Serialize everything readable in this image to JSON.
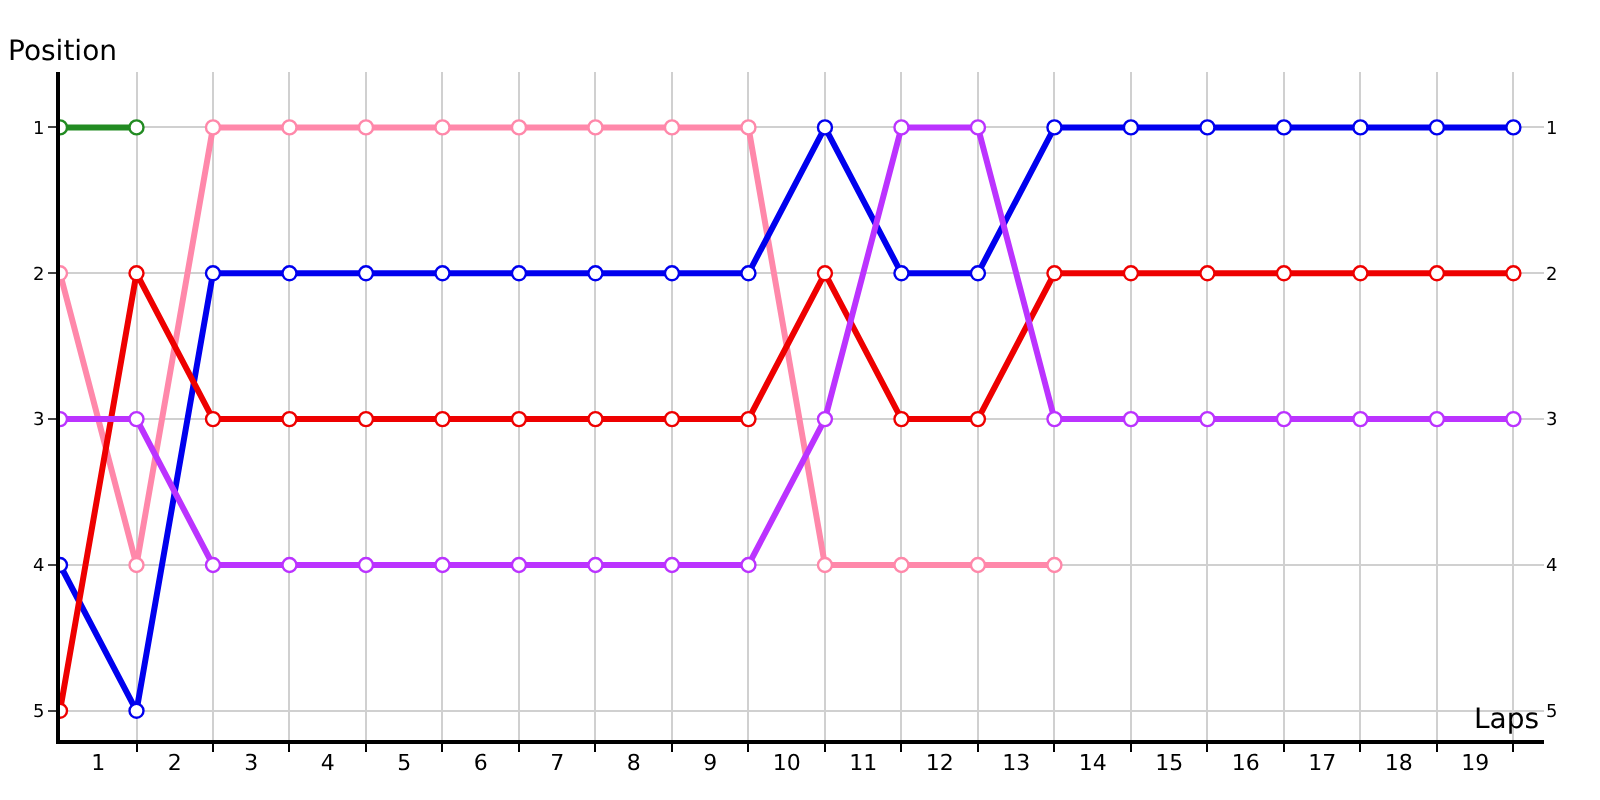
{
  "chart_data": {
    "type": "line",
    "xlabel": "Laps",
    "ylabel": "Position",
    "x": [
      0,
      1,
      2,
      3,
      4,
      5,
      6,
      7,
      8,
      9,
      10,
      11,
      12,
      13,
      14,
      15,
      16,
      17,
      18,
      19
    ],
    "series": [
      {
        "color": "#228b22",
        "values": [
          1,
          1,
          null,
          null,
          null,
          null,
          null,
          null,
          null,
          null,
          null,
          null,
          null,
          null,
          null,
          null,
          null,
          null,
          null,
          null
        ]
      },
      {
        "color": "#ff88aa",
        "values": [
          2,
          4,
          1,
          1,
          1,
          1,
          1,
          1,
          1,
          1,
          4,
          4,
          4,
          4,
          null,
          null,
          null,
          null,
          null,
          null
        ]
      },
      {
        "color": "#0000ee",
        "values": [
          4,
          5,
          2,
          2,
          2,
          2,
          2,
          2,
          2,
          2,
          1,
          2,
          2,
          1,
          1,
          1,
          1,
          1,
          1,
          1
        ]
      },
      {
        "color": "#ee0000",
        "values": [
          5,
          2,
          3,
          3,
          3,
          3,
          3,
          3,
          3,
          3,
          2,
          3,
          3,
          2,
          2,
          2,
          2,
          2,
          2,
          2
        ]
      },
      {
        "color": "#bb33ff",
        "values": [
          3,
          3,
          4,
          4,
          4,
          4,
          4,
          4,
          4,
          4,
          3,
          1,
          1,
          3,
          3,
          3,
          3,
          3,
          3,
          3
        ]
      }
    ],
    "xlim": [
      0,
      19.4
    ],
    "xticks": [
      {
        "value": 0.5,
        "label": "1"
      },
      {
        "value": 1.5,
        "label": "2"
      },
      {
        "value": 2.5,
        "label": "3"
      },
      {
        "value": 3.5,
        "label": "4"
      },
      {
        "value": 4.5,
        "label": "5"
      },
      {
        "value": 5.5,
        "label": "6"
      },
      {
        "value": 6.5,
        "label": "7"
      },
      {
        "value": 7.5,
        "label": "8"
      },
      {
        "value": 8.5,
        "label": "9"
      },
      {
        "value": 9.5,
        "label": "10"
      },
      {
        "value": 10.5,
        "label": "11"
      },
      {
        "value": 11.5,
        "label": "12"
      },
      {
        "value": 12.5,
        "label": "13"
      },
      {
        "value": 13.5,
        "label": "14"
      },
      {
        "value": 14.5,
        "label": "15"
      },
      {
        "value": 15.5,
        "label": "16"
      },
      {
        "value": 16.5,
        "label": "17"
      },
      {
        "value": 17.5,
        "label": "18"
      },
      {
        "value": 18.5,
        "label": "19"
      },
      {
        "value": 1,
        "label": null
      },
      {
        "value": 2,
        "label": null
      },
      {
        "value": 3,
        "label": null
      },
      {
        "value": 4,
        "label": null
      },
      {
        "value": 5,
        "label": null
      },
      {
        "value": 6,
        "label": null
      },
      {
        "value": 7,
        "label": null
      },
      {
        "value": 8,
        "label": null
      },
      {
        "value": 9,
        "label": null
      },
      {
        "value": 10,
        "label": null
      },
      {
        "value": 11,
        "label": null
      },
      {
        "value": 12,
        "label": null
      },
      {
        "value": 13,
        "label": null
      },
      {
        "value": 14,
        "label": null
      },
      {
        "value": 15,
        "label": null
      },
      {
        "value": 16,
        "label": null
      },
      {
        "value": 17,
        "label": null
      },
      {
        "value": 18,
        "label": null
      },
      {
        "value": 19,
        "label": null
      }
    ],
    "ylim": [
      5.2,
      0.62
    ],
    "yticks": [
      1,
      2,
      3,
      4,
      5
    ],
    "y2lim": [
      5.2,
      0.62
    ],
    "y2ticks": [
      1,
      2,
      3,
      4,
      5
    ],
    "grid": true,
    "marker": "circle",
    "line_style": "solid"
  }
}
